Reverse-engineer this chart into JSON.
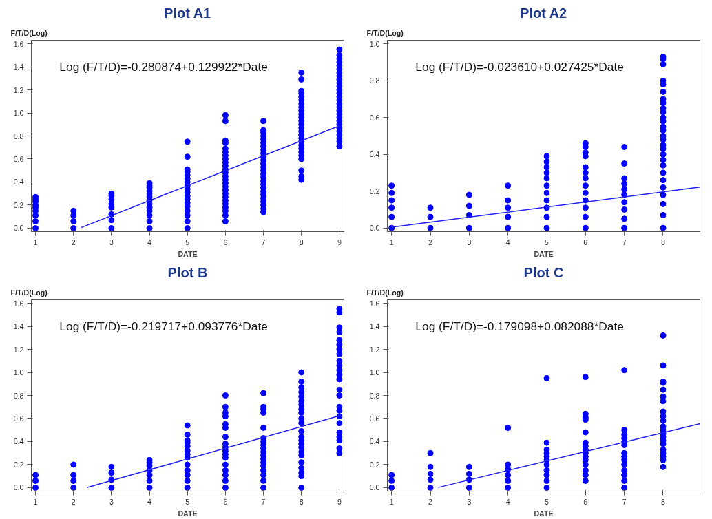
{
  "chart_data": [
    {
      "type": "scatter",
      "title": "Plot A1",
      "xlabel": "DATE",
      "ylabel": "F/T/D(Log)",
      "annotations": [
        "Log (F/T/D)=-0.280874+0.129922*Date"
      ],
      "xlim": [
        0.89,
        9.12
      ],
      "xticks": [
        1,
        2,
        3,
        4,
        5,
        6,
        7,
        8,
        9
      ],
      "ylim": [
        -0.03,
        1.63
      ],
      "yticks": [
        {
          "value": 0,
          "label": "0.0"
        },
        {
          "value": 0.2,
          "label": "0.2"
        },
        {
          "value": 0.4,
          "label": "0.4"
        },
        {
          "value": 0.6,
          "label": "0.6"
        },
        {
          "value": 0.8,
          "label": "0.8"
        },
        {
          "value": 1.0,
          "label": "1.0"
        },
        {
          "value": 1.2,
          "label": "1.2"
        },
        {
          "value": 1.4,
          "label": "1.4"
        },
        {
          "value": 1.6,
          "label": "1.6"
        }
      ],
      "series": [
        {
          "marker": "circle",
          "color": "#0000ff",
          "x": [
            1,
            1,
            1,
            1,
            1,
            1,
            1,
            1,
            1,
            2,
            2,
            2,
            2,
            3,
            3,
            3,
            3,
            3,
            3,
            3,
            3,
            4,
            4,
            4,
            4,
            4,
            4,
            4,
            4,
            4,
            4,
            4,
            4,
            4,
            5,
            5,
            5,
            5,
            5,
            5,
            5,
            5,
            5,
            5,
            5,
            5,
            5,
            5,
            5,
            5,
            5,
            5,
            6,
            6,
            6,
            6,
            6,
            6,
            6,
            6,
            6,
            6,
            6,
            6,
            6,
            6,
            6,
            6,
            6,
            6,
            6,
            6,
            6,
            6,
            6,
            6,
            6,
            7,
            7,
            7,
            7,
            7,
            7,
            7,
            7,
            7,
            7,
            7,
            7,
            7,
            7,
            7,
            7,
            7,
            7,
            7,
            7,
            7,
            7,
            7,
            7,
            7,
            7,
            8,
            8,
            8,
            8,
            8,
            8,
            8,
            8,
            8,
            8,
            8,
            8,
            8,
            8,
            8,
            8,
            8,
            8,
            8,
            8,
            8,
            8,
            8,
            8,
            8,
            8,
            9,
            9,
            9,
            9,
            9,
            9,
            9,
            9,
            9,
            9,
            9,
            9,
            9,
            9,
            9,
            9,
            9,
            9,
            9,
            9,
            9,
            9,
            9,
            9,
            9,
            9,
            9,
            9
          ],
          "values": [
            0,
            0.06,
            0.11,
            0.15,
            0.18,
            0.2,
            0.23,
            0.25,
            0.27,
            0,
            0.06,
            0.11,
            0.15,
            0,
            0.07,
            0.12,
            0.18,
            0.21,
            0.25,
            0.28,
            0.3,
            0,
            0.06,
            0.11,
            0.15,
            0.18,
            0.21,
            0.24,
            0.27,
            0.3,
            0.32,
            0.35,
            0.37,
            0.39,
            0,
            0.06,
            0.11,
            0.15,
            0.19,
            0.22,
            0.25,
            0.28,
            0.31,
            0.34,
            0.37,
            0.4,
            0.43,
            0.46,
            0.49,
            0.51,
            0.62,
            0.75,
            0.06,
            0.11,
            0.15,
            0.18,
            0.21,
            0.24,
            0.27,
            0.3,
            0.33,
            0.36,
            0.39,
            0.42,
            0.45,
            0.48,
            0.51,
            0.54,
            0.57,
            0.6,
            0.63,
            0.66,
            0.69,
            0.74,
            0.76,
            0.93,
            0.98,
            0.14,
            0.17,
            0.2,
            0.23,
            0.26,
            0.29,
            0.32,
            0.35,
            0.38,
            0.41,
            0.44,
            0.47,
            0.5,
            0.53,
            0.56,
            0.59,
            0.62,
            0.65,
            0.68,
            0.71,
            0.74,
            0.77,
            0.8,
            0.83,
            0.85,
            0.93,
            0.42,
            0.45,
            0.5,
            0.6,
            0.63,
            0.66,
            0.69,
            0.72,
            0.75,
            0.78,
            0.81,
            0.84,
            0.87,
            0.9,
            0.93,
            0.96,
            0.99,
            1.02,
            1.05,
            1.08,
            1.11,
            1.14,
            1.17,
            1.19,
            1.29,
            1.35,
            0.71,
            0.75,
            0.78,
            0.81,
            0.84,
            0.87,
            0.9,
            0.93,
            0.96,
            0.99,
            1.02,
            1.05,
            1.08,
            1.11,
            1.14,
            1.17,
            1.2,
            1.23,
            1.26,
            1.29,
            1.32,
            1.35,
            1.38,
            1.41,
            1.44,
            1.47,
            1.5,
            1.55
          ]
        },
        {
          "type": "line",
          "color": "#2020f0",
          "x": [
            2.2,
            9
          ],
          "values": [
            0.005,
            0.888
          ]
        }
      ]
    },
    {
      "type": "scatter",
      "title": "Plot A2",
      "xlabel": "DATE",
      "ylabel": "F/T/D(Log)",
      "annotations": [
        "Log (F/T/D)=-0.023610+0.027425*Date"
      ],
      "xlim": [
        0.89,
        8.95
      ],
      "xticks": [
        1,
        2,
        3,
        4,
        5,
        6,
        7,
        8
      ],
      "ylim": [
        -0.02,
        1.02
      ],
      "yticks": [
        {
          "value": 0,
          "label": "0.0"
        },
        {
          "value": 0.2,
          "label": "0.2"
        },
        {
          "value": 0.4,
          "label": "0.4"
        },
        {
          "value": 0.6,
          "label": "0.6"
        },
        {
          "value": 0.8,
          "label": "0.8"
        },
        {
          "value": 1.0,
          "label": "1.0"
        }
      ],
      "series": [
        {
          "marker": "circle",
          "color": "#0000ff",
          "x": [
            1,
            1,
            1,
            1,
            1,
            1,
            2,
            2,
            2,
            3,
            3,
            3,
            3,
            4,
            4,
            4,
            4,
            4,
            5,
            5,
            5,
            5,
            5,
            5,
            5,
            5,
            5,
            5,
            5,
            6,
            6,
            6,
            6,
            6,
            6,
            6,
            6,
            6,
            6,
            6,
            6,
            6,
            7,
            7,
            7,
            7,
            7,
            7,
            7,
            7,
            7,
            7,
            8,
            8,
            8,
            8,
            8,
            8,
            8,
            8,
            8,
            8,
            8,
            8,
            8,
            8,
            8,
            8,
            8,
            8,
            8,
            8,
            8,
            8,
            8,
            8,
            8,
            8,
            8,
            8
          ],
          "values": [
            0,
            0.06,
            0.11,
            0.15,
            0.19,
            0.23,
            0,
            0.06,
            0.11,
            0,
            0.07,
            0.12,
            0.18,
            0,
            0.06,
            0.11,
            0.15,
            0.23,
            0,
            0.06,
            0.11,
            0.15,
            0.19,
            0.23,
            0.27,
            0.3,
            0.33,
            0.36,
            0.39,
            0,
            0.06,
            0.11,
            0.15,
            0.19,
            0.23,
            0.27,
            0.3,
            0.33,
            0.39,
            0.41,
            0.44,
            0.46,
            0,
            0.05,
            0.1,
            0.14,
            0.18,
            0.21,
            0.24,
            0.27,
            0.35,
            0.44,
            0,
            0.07,
            0.13,
            0.18,
            0.22,
            0.26,
            0.3,
            0.34,
            0.37,
            0.4,
            0.43,
            0.45,
            0.48,
            0.5,
            0.53,
            0.55,
            0.58,
            0.6,
            0.63,
            0.65,
            0.68,
            0.7,
            0.74,
            0.78,
            0.8,
            0.89,
            0.92,
            0.93
          ]
        },
        {
          "type": "line",
          "color": "#2020f0",
          "x": [
            1,
            8.95
          ],
          "values": [
            0.004,
            0.222
          ]
        }
      ]
    },
    {
      "type": "scatter",
      "title": "Plot B",
      "xlabel": "DATE",
      "ylabel": "F/T/D(Log)",
      "annotations": [
        "Log (F/T/D)=-0.219717+0.093776*Date"
      ],
      "xlim": [
        0.89,
        9.12
      ],
      "xticks": [
        1,
        2,
        3,
        4,
        5,
        6,
        7,
        8,
        9
      ],
      "ylim": [
        -0.03,
        1.63
      ],
      "yticks": [
        {
          "value": 0,
          "label": "0.0"
        },
        {
          "value": 0.2,
          "label": "0.2"
        },
        {
          "value": 0.4,
          "label": "0.4"
        },
        {
          "value": 0.6,
          "label": "0.6"
        },
        {
          "value": 0.8,
          "label": "0.8"
        },
        {
          "value": 1.0,
          "label": "1.0"
        },
        {
          "value": 1.2,
          "label": "1.2"
        },
        {
          "value": 1.4,
          "label": "1.4"
        },
        {
          "value": 1.6,
          "label": "1.6"
        }
      ],
      "series": [
        {
          "marker": "circle",
          "color": "#0000ff",
          "x": [
            1,
            1,
            1,
            2,
            2,
            2,
            2,
            3,
            3,
            3,
            3,
            4,
            4,
            4,
            4,
            4,
            4,
            4,
            5,
            5,
            5,
            5,
            5,
            5,
            5,
            5,
            5,
            5,
            5,
            5,
            5,
            6,
            6,
            6,
            6,
            6,
            6,
            6,
            6,
            6,
            6,
            6,
            6,
            6,
            6,
            6,
            6,
            6,
            7,
            7,
            7,
            7,
            7,
            7,
            7,
            7,
            7,
            7,
            7,
            7,
            7,
            7,
            7,
            7,
            7,
            7,
            8,
            8,
            8,
            8,
            8,
            8,
            8,
            8,
            8,
            8,
            8,
            8,
            8,
            8,
            8,
            8,
            8,
            8,
            8,
            8,
            8,
            8,
            8,
            9,
            9,
            9,
            9,
            9,
            9,
            9,
            9,
            9,
            9,
            9,
            9,
            9,
            9,
            9,
            9,
            9,
            9,
            9,
            9,
            9,
            9,
            9,
            9
          ],
          "values": [
            0,
            0.06,
            0.11,
            0,
            0.06,
            0.11,
            0.2,
            0,
            0.07,
            0.13,
            0.18,
            0,
            0.06,
            0.11,
            0.15,
            0.19,
            0.22,
            0.24,
            0,
            0.06,
            0.11,
            0.15,
            0.2,
            0.26,
            0.29,
            0.32,
            0.36,
            0.39,
            0.41,
            0.46,
            0.54,
            0,
            0.06,
            0.11,
            0.15,
            0.2,
            0.26,
            0.29,
            0.32,
            0.35,
            0.38,
            0.44,
            0.52,
            0.55,
            0.62,
            0.65,
            0.7,
            0.8,
            0,
            0.06,
            0.11,
            0.15,
            0.19,
            0.22,
            0.25,
            0.28,
            0.31,
            0.34,
            0.37,
            0.4,
            0.43,
            0.52,
            0.65,
            0.68,
            0.7,
            0.82,
            0,
            0.1,
            0.13,
            0.17,
            0.22,
            0.28,
            0.31,
            0.35,
            0.38,
            0.41,
            0.44,
            0.49,
            0.56,
            0.6,
            0.65,
            0.68,
            0.72,
            0.75,
            0.79,
            0.83,
            0.87,
            0.92,
            1.0,
            0.3,
            0.34,
            0.41,
            0.44,
            0.48,
            0.56,
            0.62,
            0.67,
            0.7,
            0.8,
            0.85,
            0.94,
            0.98,
            1.02,
            1.06,
            1.1,
            1.16,
            1.2,
            1.24,
            1.28,
            1.35,
            1.39,
            1.52,
            1.55
          ]
        },
        {
          "type": "line",
          "color": "#2020f0",
          "x": [
            2.35,
            9
          ],
          "values": [
            0.001,
            0.624
          ]
        }
      ]
    },
    {
      "type": "scatter",
      "title": "Plot C",
      "xlabel": "DATE",
      "ylabel": "F/T/D(Log)",
      "annotations": [
        "Log (F/T/D)=-0.179098+0.082088*Date"
      ],
      "xlim": [
        0.89,
        8.95
      ],
      "xticks": [
        1,
        2,
        3,
        4,
        5,
        6,
        7,
        8
      ],
      "ylim": [
        -0.03,
        1.63
      ],
      "yticks": [
        {
          "value": 0,
          "label": "0.0"
        },
        {
          "value": 0.2,
          "label": "0.2"
        },
        {
          "value": 0.4,
          "label": "0.4"
        },
        {
          "value": 0.6,
          "label": "0.6"
        },
        {
          "value": 0.8,
          "label": "0.8"
        },
        {
          "value": 1.0,
          "label": "1.0"
        },
        {
          "value": 1.2,
          "label": "1.2"
        },
        {
          "value": 1.4,
          "label": "1.4"
        },
        {
          "value": 1.6,
          "label": "1.6"
        }
      ],
      "series": [
        {
          "marker": "circle",
          "color": "#0000ff",
          "x": [
            1,
            1,
            1,
            2,
            2,
            2,
            2,
            2,
            3,
            3,
            3,
            3,
            4,
            4,
            4,
            4,
            4,
            4,
            5,
            5,
            5,
            5,
            5,
            5,
            5,
            5,
            5,
            5,
            5,
            6,
            6,
            6,
            6,
            6,
            6,
            6,
            6,
            6,
            6,
            6,
            6,
            6,
            6,
            6,
            7,
            7,
            7,
            7,
            7,
            7,
            7,
            7,
            7,
            7,
            7,
            7,
            7,
            7,
            8,
            8,
            8,
            8,
            8,
            8,
            8,
            8,
            8,
            8,
            8,
            8,
            8,
            8,
            8,
            8,
            8,
            8,
            8,
            8,
            8
          ],
          "values": [
            0,
            0.06,
            0.11,
            0,
            0.07,
            0.12,
            0.18,
            0.3,
            0,
            0.07,
            0.12,
            0.18,
            0,
            0.06,
            0.11,
            0.16,
            0.2,
            0.52,
            0,
            0.06,
            0.11,
            0.15,
            0.2,
            0.24,
            0.27,
            0.3,
            0.33,
            0.39,
            0.95,
            0.06,
            0.11,
            0.15,
            0.2,
            0.24,
            0.27,
            0.3,
            0.33,
            0.36,
            0.39,
            0.48,
            0.59,
            0.61,
            0.64,
            0.96,
            0,
            0.06,
            0.11,
            0.15,
            0.2,
            0.24,
            0.27,
            0.3,
            0.37,
            0.4,
            0.43,
            0.46,
            0.5,
            1.02,
            0.18,
            0.24,
            0.27,
            0.3,
            0.33,
            0.38,
            0.41,
            0.44,
            0.47,
            0.5,
            0.53,
            0.58,
            0.62,
            0.66,
            0.75,
            0.79,
            0.85,
            0.91,
            0.92,
            1.06,
            1.32
          ]
        },
        {
          "type": "line",
          "color": "#2020f0",
          "x": [
            2.2,
            8.95
          ],
          "values": [
            0.002,
            0.555
          ]
        }
      ]
    }
  ]
}
